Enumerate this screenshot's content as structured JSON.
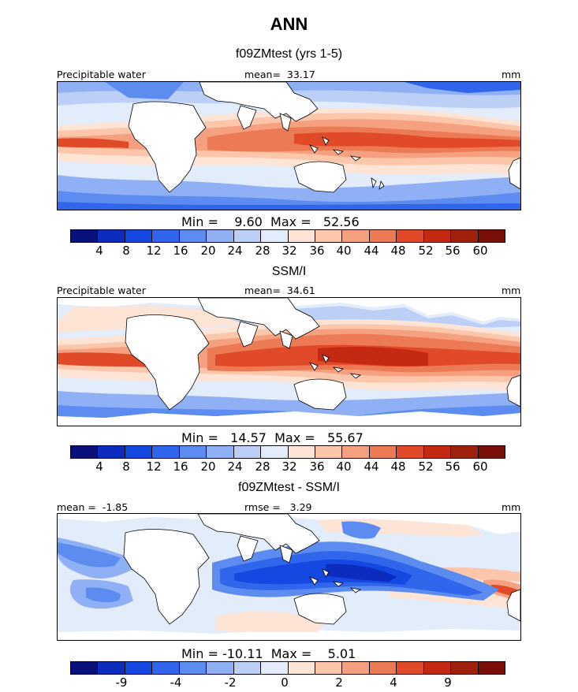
{
  "figure": {
    "title": "ANN",
    "colors": {
      "scale": [
        "#08107a",
        "#0c2cbd",
        "#1448e0",
        "#2f66ec",
        "#5c8cf0",
        "#8fb0f4",
        "#bcd0f7",
        "#e2ecfb",
        "#fde4d4",
        "#fbc6aa",
        "#f5a07e",
        "#ec7a55",
        "#e04a28",
        "#c42a12",
        "#a0200e",
        "#7a0e08"
      ]
    },
    "panels": [
      {
        "title": "f09ZMtest (yrs 1-5)",
        "left_header": "Precipitable water",
        "center_header": "mean=  33.17",
        "right_header": "mm",
        "stats": "Min =    9.60  Max =   52.56",
        "ticks": [
          "4",
          "8",
          "12",
          "16",
          "20",
          "24",
          "28",
          "32",
          "36",
          "40",
          "44",
          "48",
          "52",
          "56",
          "60"
        ]
      },
      {
        "title": "SSM/I",
        "left_header": "Precipitable water",
        "center_header": "mean=  34.61",
        "right_header": "mm",
        "stats": "Min =   14.57  Max =   55.67",
        "ticks": [
          "4",
          "8",
          "12",
          "16",
          "20",
          "24",
          "28",
          "32",
          "36",
          "40",
          "44",
          "48",
          "52",
          "56",
          "60"
        ]
      },
      {
        "title": "f09ZMtest - SSM/I",
        "left_header": "mean =  -1.85",
        "center_header": "rmse =   3.29",
        "right_header": "mm",
        "stats": "Min = -10.11  Max =    5.01",
        "ticks": [
          "-9",
          "-4",
          "-2",
          "0",
          "2",
          "4",
          "9"
        ]
      }
    ]
  }
}
